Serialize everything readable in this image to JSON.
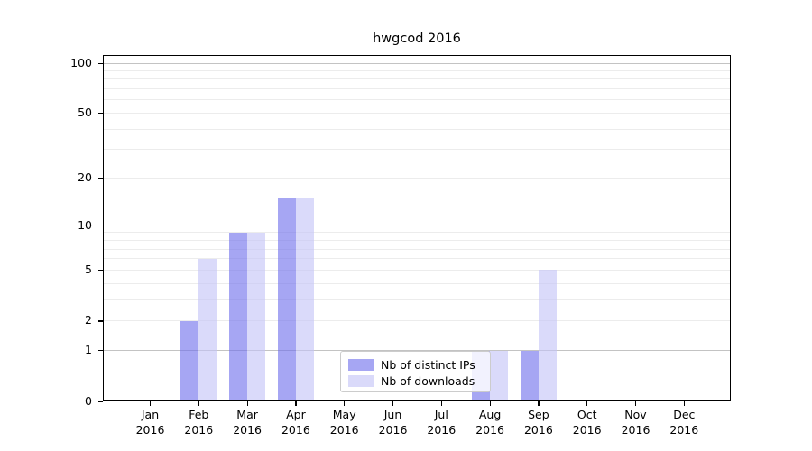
{
  "chart_data": {
    "type": "bar",
    "title": "hwgcod 2016",
    "categories": [
      "Jan",
      "Feb",
      "Mar",
      "Apr",
      "May",
      "Jun",
      "Jul",
      "Aug",
      "Sep",
      "Oct",
      "Nov",
      "Dec"
    ],
    "x_tick_second_line": "2016",
    "series": [
      {
        "name": "Nb of distinct IPs",
        "color": "#a6a6f2",
        "color_rgba": "rgba(112,112,235,0.62)",
        "values": [
          0,
          2,
          9,
          15,
          0,
          0,
          0,
          1,
          1,
          0,
          0,
          0
        ]
      },
      {
        "name": "Nb of downloads",
        "color": "#dadaf9",
        "color_rgba": "rgba(196,196,247,0.62)",
        "values": [
          0,
          6,
          9,
          15,
          0,
          0,
          0,
          1,
          5,
          0,
          0,
          0
        ]
      }
    ],
    "xlabel": "",
    "ylabel": "",
    "y_axis": {
      "scale": "log(value+1)",
      "tick_labels": [
        "100",
        "50",
        "20",
        "10",
        "5",
        "2",
        "1",
        "0"
      ],
      "tick_values": [
        100,
        50,
        20,
        10,
        5,
        2,
        1,
        0
      ],
      "ylim": [
        0,
        100
      ],
      "major_gridline_values": [
        1,
        10,
        100
      ],
      "grid": "horizontal only"
    },
    "legend": {
      "position": "lower center (inside plot)",
      "entries": [
        "Nb of distinct IPs",
        "Nb of downloads"
      ]
    }
  }
}
